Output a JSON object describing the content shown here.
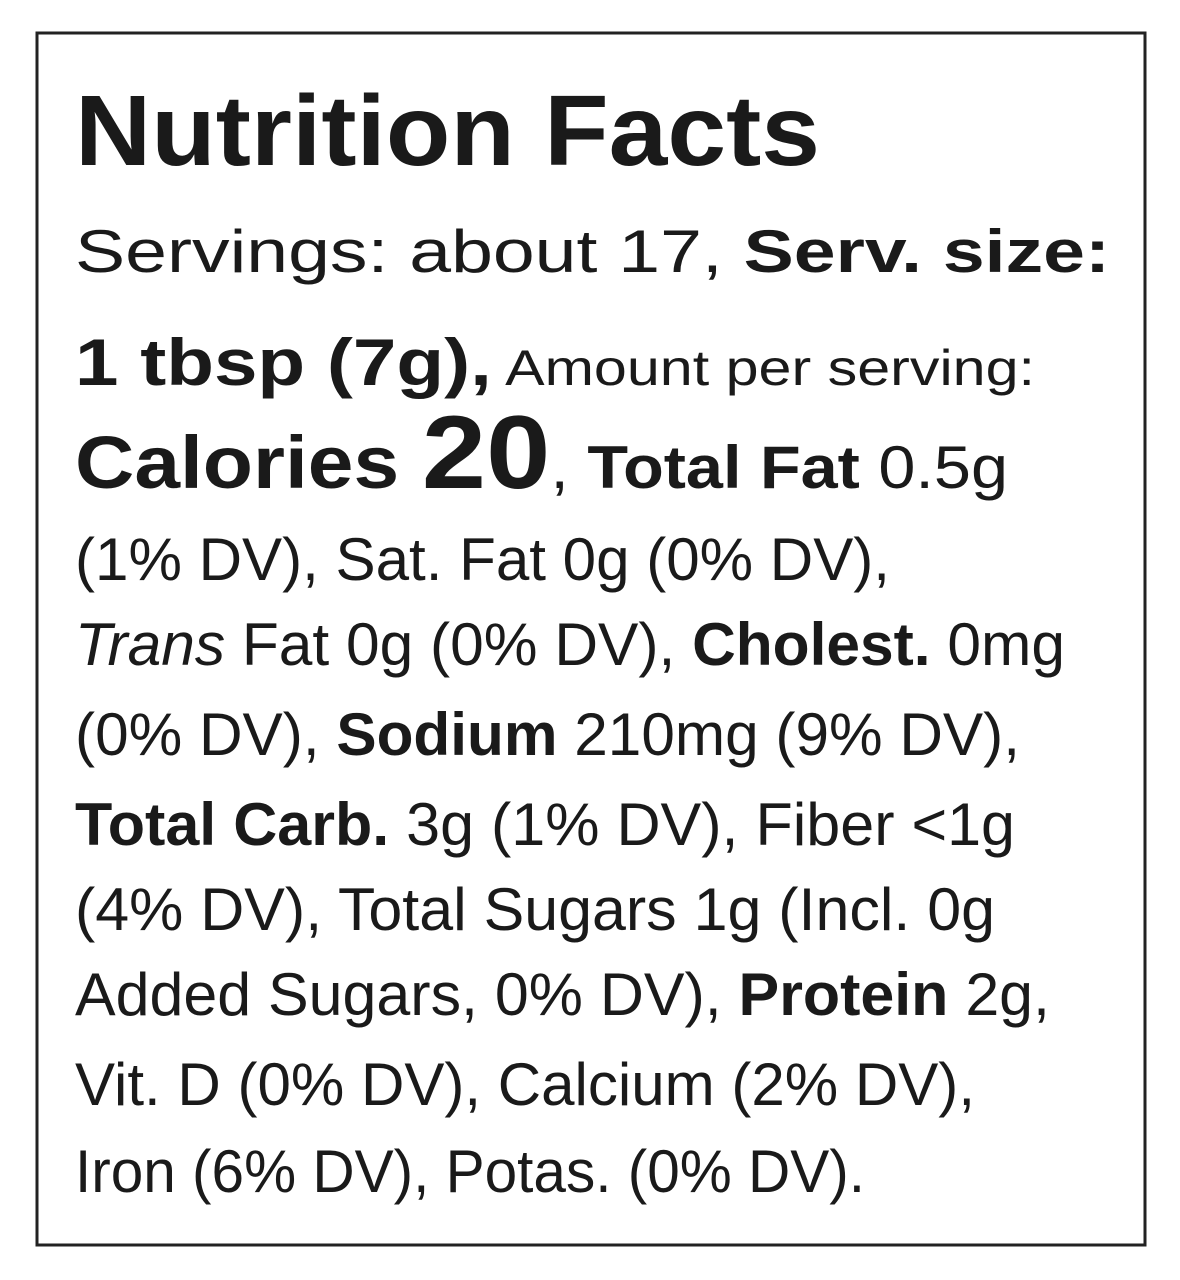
{
  "title": "Nutrition Facts",
  "lines": [
    [
      "Servings: about 17, ",
      "Serv. size:"
    ],
    [
      "1 tbsp (7g),",
      " Amount per serving:"
    ],
    [
      "Calories ",
      "20",
      ", ",
      "Total Fat",
      " 0.5g"
    ],
    [
      "(1% DV), Sat. Fat 0g (0% DV),"
    ],
    [
      "Trans",
      " Fat 0g (0% DV), ",
      "Cholest.",
      " 0mg"
    ],
    [
      "(0% DV), ",
      "Sodium",
      " 210mg (9% DV),"
    ],
    [
      "Total Carb.",
      " 3g (1% DV), Fiber <1g"
    ],
    [
      "(4% DV), Total Sugars 1g (Incl. 0g"
    ],
    [
      "Added Sugars, 0% DV), ",
      "Protein",
      " 2g,"
    ],
    [
      "Vit. D (0% DV), Calcium (2% DV),"
    ],
    [
      "Iron (6% DV), Potas. (0% DV)."
    ]
  ]
}
